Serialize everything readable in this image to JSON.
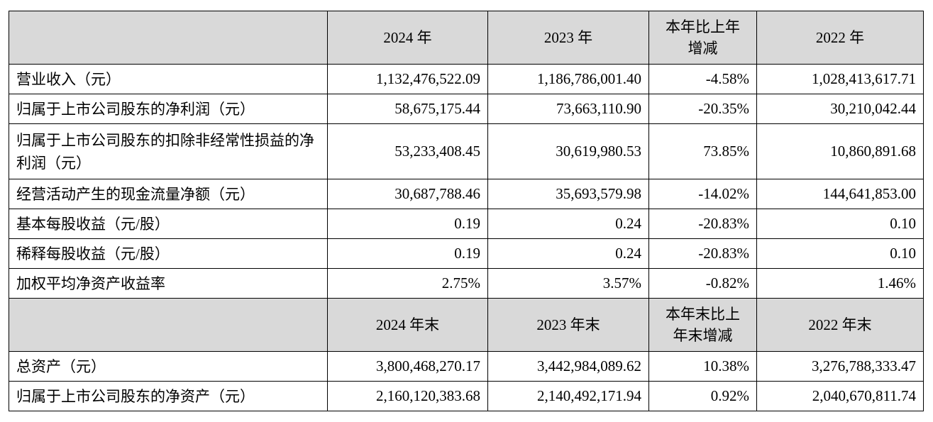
{
  "header1": [
    "",
    "2024 年",
    "2023 年",
    "本年比上年增减",
    "2022 年"
  ],
  "rows1": [
    [
      "营业收入（元）",
      "1,132,476,522.09",
      "1,186,786,001.40",
      "-4.58%",
      "1,028,413,617.71"
    ],
    [
      "归属于上市公司股东的净利润（元）",
      "58,675,175.44",
      "73,663,110.90",
      "-20.35%",
      "30,210,042.44"
    ],
    [
      "归属于上市公司股东的扣除非经常性损益的净利润（元）",
      "53,233,408.45",
      "30,619,980.53",
      "73.85%",
      "10,860,891.68"
    ],
    [
      "经营活动产生的现金流量净额（元）",
      "30,687,788.46",
      "35,693,579.98",
      "-14.02%",
      "144,641,853.00"
    ],
    [
      "基本每股收益（元/股）",
      "0.19",
      "0.24",
      "-20.83%",
      "0.10"
    ],
    [
      "稀释每股收益（元/股）",
      "0.19",
      "0.24",
      "-20.83%",
      "0.10"
    ],
    [
      "加权平均净资产收益率",
      "2.75%",
      "3.57%",
      "-0.82%",
      "1.46%"
    ]
  ],
  "header2": [
    "",
    "2024 年末",
    "2023 年末",
    "本年末比上年末增减",
    "2022 年末"
  ],
  "rows2": [
    [
      "总资产（元）",
      "3,800,468,270.17",
      "3,442,984,089.62",
      "10.38%",
      "3,276,788,333.47"
    ],
    [
      "归属于上市公司股东的净资产（元）",
      "2,160,120,383.68",
      "2,140,492,171.94",
      "0.92%",
      "2,040,670,811.74"
    ]
  ]
}
